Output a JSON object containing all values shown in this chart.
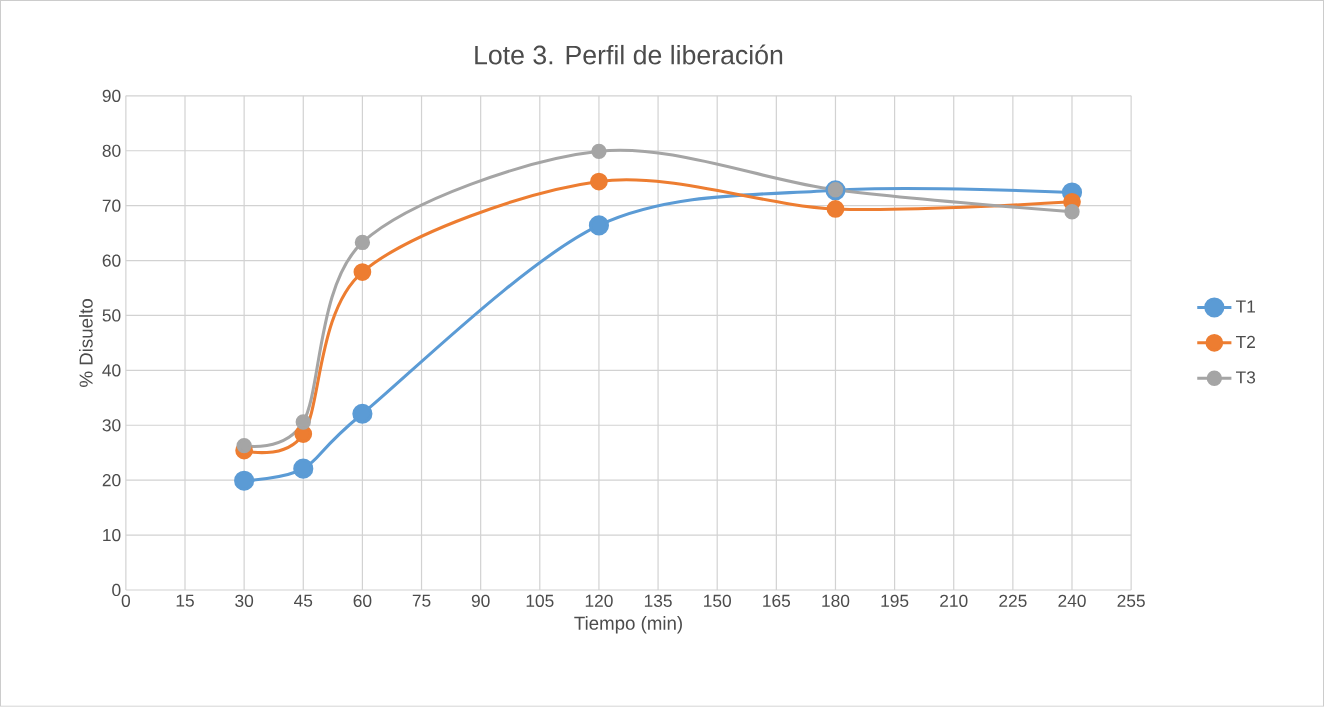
{
  "chart_data": {
    "type": "line",
    "title": "Lote 3. Perfil de liberación",
    "xlabel": "Tiempo (min)",
    "ylabel": "% Disuelto",
    "x": [
      30,
      45,
      60,
      120,
      180,
      240
    ],
    "series": [
      {
        "name": "T1",
        "color": "#5b9bd5",
        "values": [
          19.9,
          22.1,
          32.1,
          66.4,
          72.8,
          72.4
        ]
      },
      {
        "name": "T2",
        "color": "#ed7d31",
        "values": [
          25.4,
          28.4,
          57.9,
          74.4,
          69.4,
          70.7
        ]
      },
      {
        "name": "T3",
        "color": "#a5a5a5",
        "values": [
          26.3,
          30.6,
          63.3,
          79.9,
          72.9,
          68.9
        ]
      }
    ],
    "xlim": [
      0,
      255
    ],
    "ylim": [
      0,
      90
    ],
    "xticks": [
      0,
      15,
      30,
      45,
      60,
      75,
      90,
      105,
      120,
      135,
      150,
      165,
      180,
      195,
      210,
      225,
      240,
      255
    ],
    "yticks": [
      0,
      10,
      20,
      30,
      40,
      50,
      60,
      70,
      80,
      90
    ],
    "grid": true,
    "legend": "right",
    "marker": "circle",
    "line_style": "solid"
  }
}
